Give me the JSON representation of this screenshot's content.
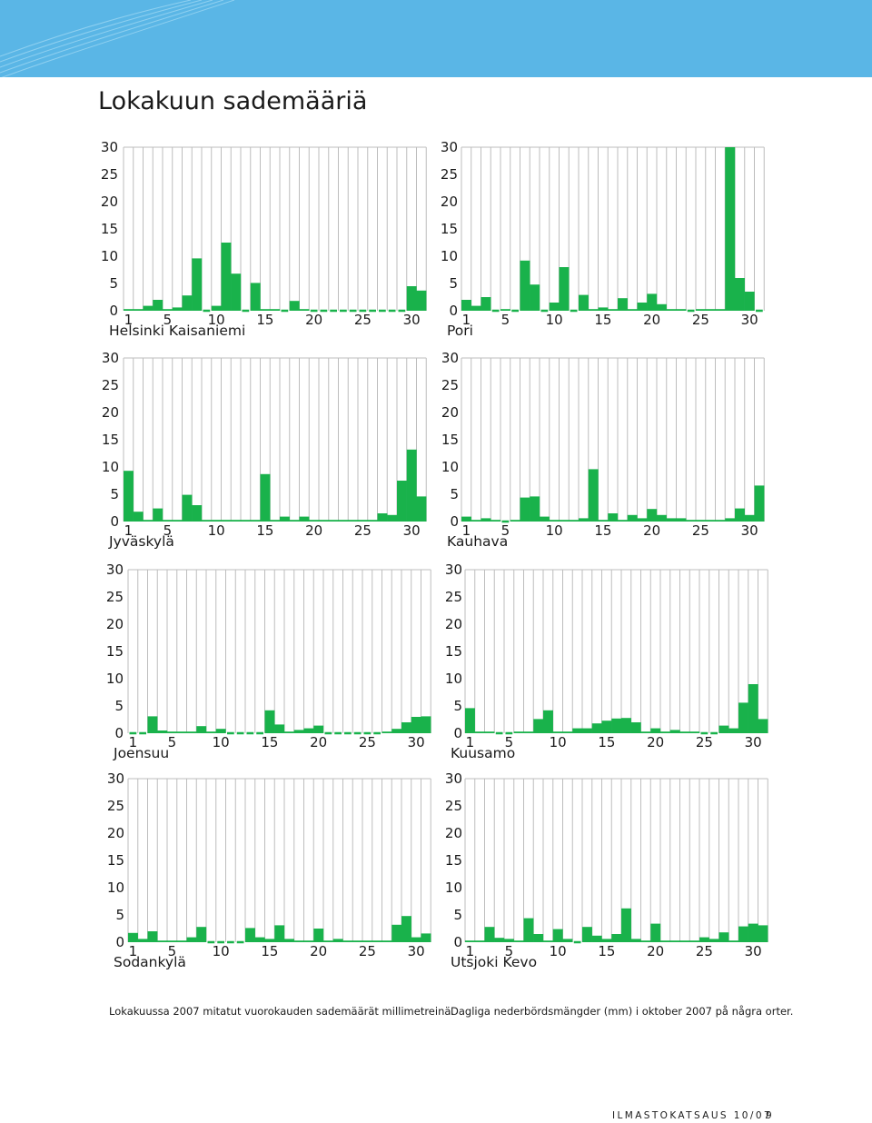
{
  "title": "Lokakuun sademääriä",
  "colors": {
    "bar": "#19b24b",
    "grid": "#bdbdbd",
    "banner": "#5ab6e6",
    "axis_text": "#1a1a1a"
  },
  "captions": {
    "fi": "Lokakuussa 2007 mitatut vuorokauden sademäärät millimetreinä.",
    "sv": "Dagliga nederbördsmängder (mm) i oktober 2007 på några orter."
  },
  "footer": {
    "publication": "ILMASTOKATSAUS 10/07",
    "page": "9"
  },
  "chart_data": [
    {
      "type": "bar",
      "station": "Helsinki Kaisaniemi",
      "ylim": [
        0,
        30
      ],
      "yticks": [
        0,
        5,
        10,
        15,
        20,
        25,
        30
      ],
      "xticks": [
        1,
        5,
        10,
        15,
        20,
        25,
        30
      ],
      "grid": true,
      "x": [
        1,
        2,
        3,
        4,
        5,
        6,
        7,
        8,
        9,
        10,
        11,
        12,
        13,
        14,
        15,
        16,
        17,
        18,
        19,
        20,
        21,
        22,
        23,
        24,
        25,
        26,
        27,
        28,
        29,
        30,
        31
      ],
      "values": [
        0.3,
        0.3,
        0.9,
        2.0,
        0.3,
        0.6,
        2.8,
        9.6,
        0.0,
        0.9,
        12.5,
        6.8,
        0.0,
        5.1,
        0.3,
        0.3,
        0.0,
        1.8,
        0.3,
        0.0,
        0.0,
        0.0,
        0.0,
        0.0,
        0.0,
        0.0,
        0.0,
        0.0,
        0.0,
        4.5,
        3.7
      ]
    },
    {
      "type": "bar",
      "station": "Pori",
      "ylim": [
        0,
        30
      ],
      "yticks": [
        0,
        5,
        10,
        15,
        20,
        25,
        30
      ],
      "xticks": [
        1,
        5,
        10,
        15,
        20,
        25,
        30
      ],
      "grid": true,
      "x": [
        1,
        2,
        3,
        4,
        5,
        6,
        7,
        8,
        9,
        10,
        11,
        12,
        13,
        14,
        15,
        16,
        17,
        18,
        19,
        20,
        21,
        22,
        23,
        24,
        25,
        26,
        27,
        28,
        29,
        30,
        31
      ],
      "values": [
        2.0,
        0.9,
        2.5,
        0.0,
        0.3,
        0.0,
        9.2,
        4.8,
        0.0,
        1.5,
        8.0,
        0.0,
        2.9,
        0.3,
        0.6,
        0.3,
        2.3,
        0.3,
        1.5,
        3.1,
        1.2,
        0.3,
        0.3,
        0.0,
        0.3,
        0.3,
        0.3,
        30.0,
        6.0,
        3.5,
        0.0
      ]
    },
    {
      "type": "bar",
      "station": "Jyväskylä",
      "ylim": [
        0,
        30
      ],
      "yticks": [
        0,
        5,
        10,
        15,
        20,
        25,
        30
      ],
      "xticks": [
        1,
        5,
        10,
        15,
        20,
        25,
        30
      ],
      "grid": true,
      "x": [
        1,
        2,
        3,
        4,
        5,
        6,
        7,
        8,
        9,
        10,
        11,
        12,
        13,
        14,
        15,
        16,
        17,
        18,
        19,
        20,
        21,
        22,
        23,
        24,
        25,
        26,
        27,
        28,
        29,
        30,
        31
      ],
      "values": [
        9.3,
        1.8,
        0.3,
        2.4,
        0.3,
        0.3,
        4.9,
        3.0,
        0.3,
        0.3,
        0.3,
        0.3,
        0.3,
        0.3,
        8.7,
        0.3,
        0.9,
        0.3,
        0.9,
        0.3,
        0.3,
        0.3,
        0.3,
        0.3,
        0.3,
        0.3,
        1.5,
        1.2,
        7.5,
        13.2,
        4.6
      ]
    },
    {
      "type": "bar",
      "station": "Kauhava",
      "ylim": [
        0,
        30
      ],
      "yticks": [
        0,
        5,
        10,
        15,
        20,
        25,
        30
      ],
      "xticks": [
        1,
        5,
        10,
        15,
        20,
        25,
        30
      ],
      "grid": true,
      "x": [
        1,
        2,
        3,
        4,
        5,
        6,
        7,
        8,
        9,
        10,
        11,
        12,
        13,
        14,
        15,
        16,
        17,
        18,
        19,
        20,
        21,
        22,
        23,
        24,
        25,
        26,
        27,
        28,
        29,
        30,
        31
      ],
      "values": [
        0.9,
        0.3,
        0.6,
        0.3,
        0.0,
        0.3,
        4.4,
        4.6,
        0.9,
        0.3,
        0.3,
        0.3,
        0.6,
        9.6,
        0.3,
        1.5,
        0.3,
        1.2,
        0.6,
        2.3,
        1.2,
        0.6,
        0.6,
        0.3,
        0.3,
        0.3,
        0.3,
        0.6,
        2.4,
        1.2,
        6.6
      ]
    },
    {
      "type": "bar",
      "station": "Joensuu",
      "ylim": [
        0,
        30
      ],
      "yticks": [
        0,
        5,
        10,
        15,
        20,
        25,
        30
      ],
      "xticks": [
        1,
        5,
        10,
        15,
        20,
        25,
        30
      ],
      "grid": true,
      "x": [
        1,
        2,
        3,
        4,
        5,
        6,
        7,
        8,
        9,
        10,
        11,
        12,
        13,
        14,
        15,
        16,
        17,
        18,
        19,
        20,
        21,
        22,
        23,
        24,
        25,
        26,
        27,
        28,
        29,
        30,
        31
      ],
      "values": [
        0.0,
        0.0,
        3.1,
        0.5,
        0.3,
        0.3,
        0.3,
        1.3,
        0.3,
        0.8,
        0.0,
        0.0,
        0.0,
        0.0,
        4.2,
        1.6,
        0.3,
        0.6,
        0.9,
        1.4,
        0.0,
        0.0,
        0.0,
        0.0,
        0.0,
        0.0,
        0.3,
        0.8,
        2.0,
        3.0,
        3.1
      ]
    },
    {
      "type": "bar",
      "station": "Kuusamo",
      "ylim": [
        0,
        30
      ],
      "yticks": [
        0,
        5,
        10,
        15,
        20,
        25,
        30
      ],
      "xticks": [
        1,
        5,
        10,
        15,
        20,
        25,
        30
      ],
      "grid": true,
      "x": [
        1,
        2,
        3,
        4,
        5,
        6,
        7,
        8,
        9,
        10,
        11,
        12,
        13,
        14,
        15,
        16,
        17,
        18,
        19,
        20,
        21,
        22,
        23,
        24,
        25,
        26,
        27,
        28,
        29,
        30,
        31
      ],
      "values": [
        4.6,
        0.3,
        0.3,
        0.0,
        0.0,
        0.3,
        0.3,
        2.6,
        4.2,
        0.3,
        0.3,
        0.9,
        0.9,
        1.8,
        2.3,
        2.7,
        2.8,
        2.0,
        0.3,
        0.9,
        0.3,
        0.6,
        0.3,
        0.3,
        0.0,
        0.0,
        1.4,
        0.9,
        5.6,
        9.0,
        2.6
      ]
    },
    {
      "type": "bar",
      "station": "Sodankylä",
      "ylim": [
        0,
        30
      ],
      "yticks": [
        0,
        5,
        10,
        15,
        20,
        25,
        30
      ],
      "xticks": [
        1,
        5,
        10,
        15,
        20,
        25,
        30
      ],
      "grid": true,
      "x": [
        1,
        2,
        3,
        4,
        5,
        6,
        7,
        8,
        9,
        10,
        11,
        12,
        13,
        14,
        15,
        16,
        17,
        18,
        19,
        20,
        21,
        22,
        23,
        24,
        25,
        26,
        27,
        28,
        29,
        30,
        31
      ],
      "values": [
        1.7,
        0.6,
        2.0,
        0.3,
        0.3,
        0.3,
        0.9,
        2.8,
        0.0,
        0.0,
        0.0,
        0.0,
        2.6,
        0.9,
        0.6,
        3.1,
        0.6,
        0.3,
        0.3,
        2.5,
        0.3,
        0.6,
        0.3,
        0.3,
        0.3,
        0.3,
        0.3,
        3.2,
        4.8,
        0.9,
        1.6
      ]
    },
    {
      "type": "bar",
      "station": "Utsjoki Kevo",
      "ylim": [
        0,
        30
      ],
      "yticks": [
        0,
        5,
        10,
        15,
        20,
        25,
        30
      ],
      "xticks": [
        1,
        5,
        10,
        15,
        20,
        25,
        30
      ],
      "grid": true,
      "x": [
        1,
        2,
        3,
        4,
        5,
        6,
        7,
        8,
        9,
        10,
        11,
        12,
        13,
        14,
        15,
        16,
        17,
        18,
        19,
        20,
        21,
        22,
        23,
        24,
        25,
        26,
        27,
        28,
        29,
        30,
        31
      ],
      "values": [
        0.3,
        0.3,
        2.8,
        0.8,
        0.6,
        0.3,
        4.4,
        1.5,
        0.3,
        2.4,
        0.6,
        0.0,
        2.8,
        1.2,
        0.6,
        1.5,
        6.2,
        0.6,
        0.3,
        3.4,
        0.3,
        0.3,
        0.3,
        0.3,
        0.9,
        0.6,
        1.8,
        0.3,
        2.9,
        3.4,
        3.1
      ]
    }
  ]
}
